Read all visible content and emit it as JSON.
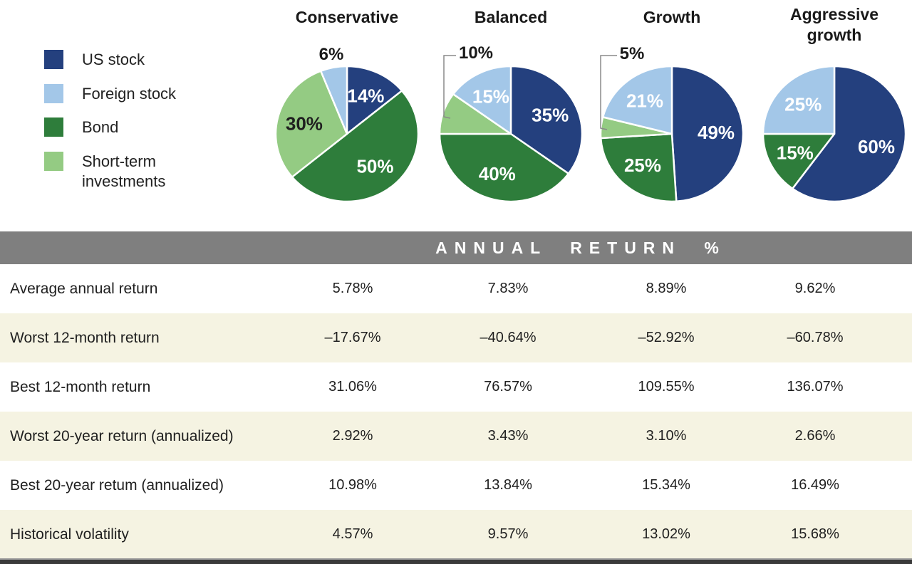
{
  "colors": {
    "us_stock": "#24407e",
    "foreign_stock": "#a3c7e8",
    "bond": "#2e7d3b",
    "short_term": "#94cb83",
    "header_band_bg": "#7f7f7f",
    "header_band_text": "#ffffff",
    "row_alt_bg": "#f5f3e2",
    "bracket_line": "#8a8a8a",
    "bottom_bar": "#3a3a3a"
  },
  "legend": {
    "items": [
      {
        "label": "US stock",
        "color_key": "us_stock"
      },
      {
        "label": "Foreign stock",
        "color_key": "foreign_stock"
      },
      {
        "label": "Bond",
        "color_key": "bond"
      },
      {
        "label": "Short-term investments",
        "color_key": "short_term"
      }
    ]
  },
  "chart_data": [
    {
      "type": "pie",
      "title": "Conservative",
      "labels": [
        "US stock",
        "Bond",
        "Short-term investments",
        "Foreign stock"
      ],
      "values": [
        14,
        50,
        30,
        6
      ],
      "slice_labels": [
        "14%",
        "50%",
        "30%",
        "6%"
      ],
      "colors": [
        "us_stock",
        "bond",
        "short_term",
        "foreign_stock"
      ],
      "label_styles": [
        "inside-light",
        "inside-light",
        "inside-dark",
        "callout"
      ],
      "start_angle_deg": 0,
      "direction": "clockwise"
    },
    {
      "type": "pie",
      "title": "Balanced",
      "labels": [
        "US stock",
        "Bond",
        "Short-term investments",
        "Foreign stock"
      ],
      "values": [
        35,
        40,
        10,
        15
      ],
      "slice_labels": [
        "35%",
        "40%",
        "10%",
        "15%"
      ],
      "colors": [
        "us_stock",
        "bond",
        "short_term",
        "foreign_stock"
      ],
      "label_styles": [
        "inside-light",
        "inside-light",
        "callout",
        "inside-light"
      ],
      "start_angle_deg": 0,
      "direction": "clockwise"
    },
    {
      "type": "pie",
      "title": "Growth",
      "labels": [
        "US stock",
        "Bond",
        "Short-term investments",
        "Foreign stock"
      ],
      "values": [
        49,
        25,
        5,
        21
      ],
      "slice_labels": [
        "49%",
        "25%",
        "5%",
        "21%"
      ],
      "colors": [
        "us_stock",
        "bond",
        "short_term",
        "foreign_stock"
      ],
      "label_styles": [
        "inside-light",
        "inside-light",
        "callout",
        "inside-light"
      ],
      "start_angle_deg": 0,
      "direction": "clockwise"
    },
    {
      "type": "pie",
      "title": "Aggressive growth",
      "labels": [
        "US stock",
        "Bond",
        "Foreign stock"
      ],
      "values": [
        60,
        15,
        25
      ],
      "slice_labels": [
        "60%",
        "15%",
        "25%"
      ],
      "colors": [
        "us_stock",
        "bond",
        "foreign_stock"
      ],
      "label_styles": [
        "inside-light",
        "inside-light",
        "inside-light"
      ],
      "start_angle_deg": 0,
      "direction": "clockwise"
    },
    {
      "type": "table",
      "title": "ANNUAL RETURN %",
      "columns": [
        "Conservative",
        "Balanced",
        "Growth",
        "Aggressive growth"
      ],
      "rows": [
        {
          "label": "Average annual return",
          "values": [
            "5.78%",
            "7.83%",
            "8.89%",
            "9.62%"
          ]
        },
        {
          "label": "Worst 12-month return",
          "values": [
            "–17.67%",
            "–40.64%",
            "–52.92%",
            "–60.78%"
          ]
        },
        {
          "label": "Best 12-month return",
          "values": [
            "31.06%",
            "76.57%",
            "109.55%",
            "136.07%"
          ]
        },
        {
          "label": "Worst 20-year return (annualized)",
          "values": [
            "2.92%",
            "3.43%",
            "3.10%",
            "2.66%"
          ]
        },
        {
          "label": "Best 20-year retum (annualized)",
          "values": [
            "10.98%",
            "13.84%",
            "15.34%",
            "16.49%"
          ]
        },
        {
          "label": "Historical volatility",
          "values": [
            "4.57%",
            "9.57%",
            "13.02%",
            "15.68%"
          ]
        }
      ]
    }
  ]
}
